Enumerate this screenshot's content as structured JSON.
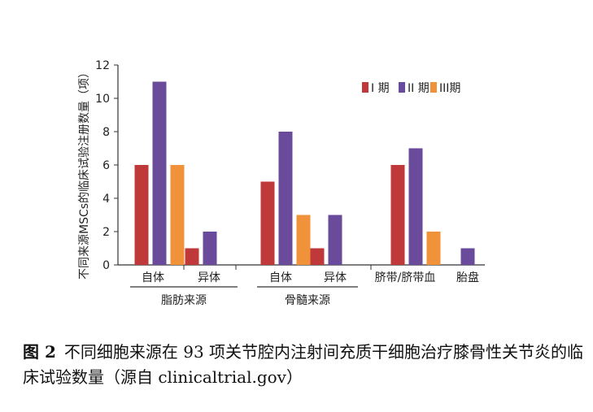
{
  "chart_data": {
    "type": "bar",
    "ylabel": "不同来源MSCs的临床试验注册数量（项）",
    "ylim": [
      0,
      12
    ],
    "yticks": [
      "0",
      "2",
      "4",
      "6",
      "8",
      "10",
      "12"
    ],
    "legend": {
      "position": "top-right"
    },
    "series": [
      {
        "name": "I 期",
        "color": "#c0393a"
      },
      {
        "name": "II 期",
        "color": "#6a4b9b"
      },
      {
        "name": "III期",
        "color": "#f0923a"
      }
    ],
    "categories": [
      "自体",
      "异体",
      "自体",
      "异体",
      "脐带/脐带血",
      "胎盘"
    ],
    "bars": [
      [
        6,
        11,
        6
      ],
      [
        1,
        2,
        null
      ],
      [
        5,
        8,
        3
      ],
      [
        1,
        3,
        null
      ],
      [
        6,
        7,
        2
      ],
      [
        null,
        1,
        null
      ]
    ],
    "groups": [
      {
        "label": "脂肪来源"
      },
      {
        "label": "骨髓来源"
      }
    ]
  },
  "caption": {
    "figure_no": "图 2",
    "text": "不同细胞来源在 93 项关节腔内注射间充质干细胞治疗膝骨性关节炎的临床试验数量（源自 clinicaltrial.gov）"
  }
}
